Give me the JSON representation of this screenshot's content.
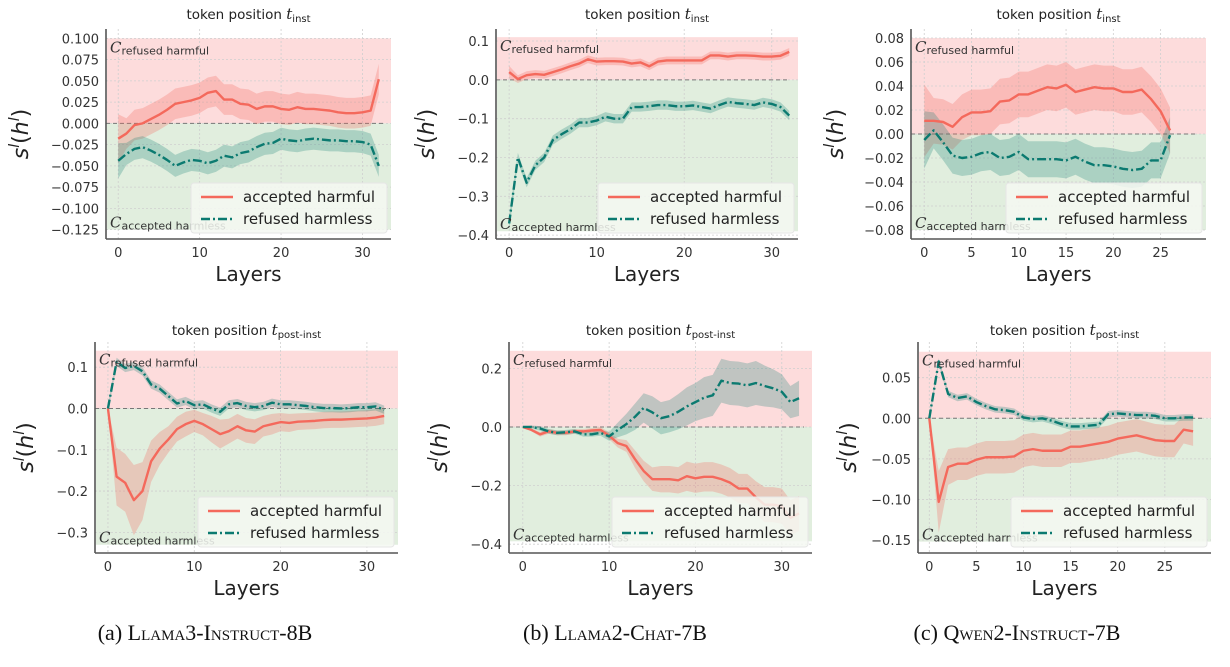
{
  "colors": {
    "accepted": "#f4695c",
    "refused": "#0b7a70",
    "refused_region": "#fddcdc",
    "accepted_region": "#e1eede"
  },
  "captions": [
    {
      "label": "(a)",
      "model": "Llama3-Instruct-8B"
    },
    {
      "label": "(b)",
      "model": "Llama2-Chat-7B"
    },
    {
      "label": "(c)",
      "model": "Qwen2-Instruct-7B"
    }
  ],
  "chart_data": [
    {
      "type": "line",
      "title_prefix": "token position",
      "title_symbol": "t",
      "title_sub": "inst",
      "xlabel": "Layers",
      "ylabel_base": "s",
      "ylabel_sup": "l",
      "ylabel_arg": "h",
      "region_symbol": "C",
      "region_top": "refused harmful",
      "region_bottom": "accepted harmless",
      "xlim": [
        -1.5,
        33.5
      ],
      "ylim": [
        -0.136,
        0.111
      ],
      "region_limits": [
        -0.125,
        0.1
      ],
      "xticks": [
        0,
        10,
        20,
        30
      ],
      "xtick_labels": [
        "0",
        "10",
        "20",
        "30"
      ],
      "yticks": [
        0.1,
        0.075,
        0.05,
        0.025,
        0,
        -0.025,
        -0.05,
        -0.075,
        -0.1,
        -0.125
      ],
      "ytick_labels": [
        "0.100",
        "0.075",
        "0.050",
        "0.025",
        "0.000",
        "−0.025",
        "−0.050",
        "−0.075",
        "−0.100",
        "−0.125"
      ],
      "series": [
        {
          "name": "accepted harmful",
          "std": 0.018,
          "values": [
            -0.018,
            -0.012,
            -0.002,
            0,
            0.005,
            0.01,
            0.016,
            0.023,
            0.025,
            0.027,
            0.03,
            0.036,
            0.038,
            0.028,
            0.028,
            0.023,
            0.022,
            0.017,
            0.02,
            0.02,
            0.017,
            0.016,
            0.019,
            0.017,
            0.017,
            0.016,
            0.015,
            0.013,
            0.012,
            0.012,
            0.013,
            0.015,
            0.052
          ]
        },
        {
          "name": "refused harmless",
          "std": 0.013,
          "values": [
            -0.044,
            -0.036,
            -0.03,
            -0.028,
            -0.032,
            -0.037,
            -0.043,
            -0.05,
            -0.046,
            -0.043,
            -0.044,
            -0.047,
            -0.044,
            -0.038,
            -0.04,
            -0.035,
            -0.033,
            -0.028,
            -0.024,
            -0.023,
            -0.018,
            -0.02,
            -0.021,
            -0.019,
            -0.018,
            -0.019,
            -0.02,
            -0.02,
            -0.021,
            -0.021,
            -0.022,
            -0.025,
            -0.05
          ]
        }
      ]
    },
    {
      "type": "line",
      "title_prefix": "token position",
      "title_symbol": "t",
      "title_sub": "inst",
      "xlabel": "Layers",
      "ylabel_base": "s",
      "ylabel_sup": "l",
      "ylabel_arg": "h",
      "region_symbol": "C",
      "region_top": "refused harmful",
      "region_bottom": "accepted harmless",
      "xlim": [
        -1.5,
        33
      ],
      "ylim": [
        -0.41,
        0.131
      ],
      "region_limits": [
        -0.39,
        0.11
      ],
      "xticks": [
        0,
        10,
        20,
        30
      ],
      "xtick_labels": [
        "0",
        "10",
        "20",
        "30"
      ],
      "yticks": [
        0.1,
        0,
        -0.1,
        -0.2,
        -0.3,
        -0.4
      ],
      "ytick_labels": [
        "0.1",
        "0.0",
        "−0.1",
        "−0.2",
        "−0.3",
        "−0.4"
      ],
      "series": [
        {
          "name": "accepted harmful",
          "std": 0.01,
          "values": [
            0.02,
            0.002,
            0.012,
            0.015,
            0.013,
            0.02,
            0.027,
            0.035,
            0.042,
            0.053,
            0.047,
            0.048,
            0.048,
            0.047,
            0.042,
            0.045,
            0.035,
            0.047,
            0.05,
            0.05,
            0.05,
            0.05,
            0.05,
            0.063,
            0.063,
            0.06,
            0.063,
            0.063,
            0.062,
            0.06,
            0.06,
            0.062,
            0.072
          ]
        },
        {
          "name": "refused harmless",
          "std": 0.012,
          "values": [
            -0.37,
            -0.2,
            -0.265,
            -0.22,
            -0.2,
            -0.155,
            -0.14,
            -0.127,
            -0.11,
            -0.11,
            -0.105,
            -0.095,
            -0.1,
            -0.1,
            -0.07,
            -0.07,
            -0.068,
            -0.065,
            -0.065,
            -0.068,
            -0.068,
            -0.066,
            -0.07,
            -0.074,
            -0.065,
            -0.057,
            -0.06,
            -0.062,
            -0.065,
            -0.058,
            -0.062,
            -0.07,
            -0.092
          ]
        }
      ]
    },
    {
      "type": "line",
      "title_prefix": "token position",
      "title_symbol": "t",
      "title_sub": "inst",
      "xlabel": "Layers",
      "ylabel_base": "s",
      "ylabel_sup": "l",
      "ylabel_arg": "h",
      "region_symbol": "C",
      "region_top": "refused harmful",
      "region_bottom": "accepted harmless",
      "xlim": [
        -1.4,
        29.8
      ],
      "ylim": [
        -0.0875,
        0.0875
      ],
      "region_limits": [
        -0.08,
        0.08
      ],
      "xticks": [
        0,
        5,
        10,
        15,
        20,
        25
      ],
      "xtick_labels": [
        "0",
        "5",
        "10",
        "15",
        "20",
        "25"
      ],
      "yticks": [
        0.08,
        0.06,
        0.04,
        0.02,
        0,
        -0.02,
        -0.04,
        -0.06,
        -0.08
      ],
      "ytick_labels": [
        "0.08",
        "0.06",
        "0.04",
        "0.02",
        "0.00",
        "−0.02",
        "−0.04",
        "−0.06",
        "−0.08"
      ],
      "series": [
        {
          "name": "accepted harmful",
          "std": 0.019,
          "values": [
            0.011,
            0.011,
            0.01,
            0.006,
            0.014,
            0.018,
            0.018,
            0.019,
            0.027,
            0.028,
            0.033,
            0.033,
            0.036,
            0.039,
            0.038,
            0.041,
            0.035,
            0.037,
            0.039,
            0.038,
            0.038,
            0.035,
            0.035,
            0.037,
            0.029,
            0.019,
            0.003
          ]
        },
        {
          "name": "refused harmless",
          "std": 0.015,
          "values": [
            -0.005,
            0.003,
            -0.007,
            -0.018,
            -0.02,
            -0.019,
            -0.016,
            -0.015,
            -0.02,
            -0.019,
            -0.015,
            -0.021,
            -0.021,
            -0.021,
            -0.021,
            -0.022,
            -0.019,
            -0.023,
            -0.026,
            -0.026,
            -0.027,
            -0.029,
            -0.03,
            -0.029,
            -0.022,
            -0.022,
            -0.001
          ]
        }
      ]
    },
    {
      "type": "line",
      "title_prefix": "token position",
      "title_symbol": "t",
      "title_sub": "post-inst",
      "xlabel": "Layers",
      "ylabel_base": "s",
      "ylabel_sup": "l",
      "ylabel_arg": "h",
      "region_symbol": "C",
      "region_top": "refused harmful",
      "region_bottom": "accepted harmless",
      "xlim": [
        -1.5,
        33.6
      ],
      "ylim": [
        -0.35,
        0.161
      ],
      "region_limits": [
        -0.33,
        0.14
      ],
      "xticks": [
        0,
        10,
        20,
        30
      ],
      "xtick_labels": [
        "0",
        "10",
        "20",
        "30"
      ],
      "yticks": [
        0.1,
        0,
        -0.1,
        -0.2,
        -0.3
      ],
      "ytick_labels": [
        "0.1",
        "0.0",
        "−0.1",
        "−0.2",
        "−0.3"
      ],
      "series": [
        {
          "name": "accepted harmful",
          "std": [
            0,
            0.07,
            0.07,
            0.085,
            0.07,
            0.05,
            0.04,
            0.032,
            0.03,
            0.03,
            0.027,
            0.027,
            0.032,
            0.035,
            0.03,
            0.03,
            0.03,
            0.03,
            0.025,
            0.025,
            0.022,
            0.022,
            0.02,
            0.02,
            0.02,
            0.02,
            0.02,
            0.02,
            0.02,
            0.02,
            0.02,
            0.02,
            0.02
          ],
          "values": [
            0,
            -0.165,
            -0.18,
            -0.222,
            -0.2,
            -0.128,
            -0.097,
            -0.075,
            -0.05,
            -0.038,
            -0.03,
            -0.038,
            -0.05,
            -0.062,
            -0.055,
            -0.043,
            -0.053,
            -0.056,
            -0.043,
            -0.038,
            -0.033,
            -0.035,
            -0.032,
            -0.031,
            -0.03,
            -0.028,
            -0.027,
            -0.027,
            -0.026,
            -0.025,
            -0.024,
            -0.022,
            -0.018
          ]
        },
        {
          "name": "refused harmless",
          "std": 0.01,
          "values": [
            0,
            0.113,
            0.098,
            0.103,
            0.09,
            0.058,
            0.048,
            0.03,
            0.012,
            0.018,
            0.008,
            0.01,
            0,
            -0.008,
            0.01,
            0.013,
            0.006,
            0.003,
            0.006,
            0.014,
            0.01,
            0.01,
            0.008,
            0.006,
            0.003,
            0.001,
            0.001,
            0,
            0.001,
            0.003,
            0.003,
            0.005,
            -0.003
          ]
        }
      ]
    },
    {
      "type": "line",
      "title_prefix": "token position",
      "title_symbol": "t",
      "title_sub": "post-inst",
      "xlabel": "Layers",
      "ylabel_base": "s",
      "ylabel_sup": "l",
      "ylabel_arg": "h",
      "region_symbol": "C",
      "region_top": "refused harmful",
      "region_bottom": "accepted harmless",
      "xlim": [
        -1.6,
        33.5
      ],
      "ylim": [
        -0.43,
        0.29
      ],
      "region_limits": [
        -0.39,
        0.26
      ],
      "xticks": [
        0,
        10,
        20,
        30
      ],
      "xtick_labels": [
        "0",
        "10",
        "20",
        "30"
      ],
      "yticks": [
        0.2,
        0,
        -0.2,
        -0.4
      ],
      "ytick_labels": [
        "0.2",
        "0.0",
        "−0.2",
        "−0.4"
      ],
      "series": [
        {
          "name": "accepted harmful",
          "std": [
            0,
            0.005,
            0.008,
            0.008,
            0.008,
            0.008,
            0.008,
            0.008,
            0.008,
            0.01,
            0.012,
            0.015,
            0.02,
            0.03,
            0.035,
            0.04,
            0.045,
            0.045,
            0.045,
            0.05,
            0.05,
            0.05,
            0.05,
            0.05,
            0.05,
            0.05,
            0.05,
            0.055,
            0.06,
            0.06,
            0.06,
            0.06,
            0.06
          ],
          "values": [
            0,
            -0.01,
            -0.025,
            -0.015,
            -0.02,
            -0.02,
            -0.015,
            -0.015,
            -0.012,
            -0.01,
            -0.03,
            -0.055,
            -0.065,
            -0.11,
            -0.15,
            -0.178,
            -0.178,
            -0.178,
            -0.182,
            -0.168,
            -0.175,
            -0.17,
            -0.17,
            -0.178,
            -0.19,
            -0.21,
            -0.21,
            -0.24,
            -0.265,
            -0.265,
            -0.27,
            -0.31,
            -0.295
          ]
        },
        {
          "name": "refused harmless",
          "std": [
            0,
            0.005,
            0.008,
            0.008,
            0.008,
            0.008,
            0.008,
            0.008,
            0.008,
            0.01,
            0.015,
            0.025,
            0.035,
            0.045,
            0.05,
            0.055,
            0.055,
            0.055,
            0.06,
            0.065,
            0.065,
            0.07,
            0.07,
            0.075,
            0.075,
            0.075,
            0.075,
            0.075,
            0.07,
            0.065,
            0.06,
            0.055,
            0.06
          ],
          "values": [
            0,
            0,
            -0.005,
            -0.015,
            -0.02,
            -0.018,
            -0.015,
            -0.025,
            -0.025,
            -0.02,
            -0.032,
            -0.01,
            0.01,
            0.035,
            0.065,
            0.05,
            0.03,
            0.037,
            0.052,
            0.07,
            0.085,
            0.1,
            0.108,
            0.158,
            0.15,
            0.148,
            0.142,
            0.15,
            0.14,
            0.132,
            0.12,
            0.085,
            0.098
          ]
        }
      ]
    },
    {
      "type": "line",
      "title_prefix": "token position",
      "title_symbol": "t",
      "title_sub": "post-inst",
      "xlabel": "Layers",
      "ylabel_base": "s",
      "ylabel_sup": "l",
      "ylabel_arg": "h",
      "region_symbol": "C",
      "region_top": "refused harmful",
      "region_bottom": "accepted harmless",
      "xlim": [
        -1.2,
        29.9
      ],
      "ylim": [
        -0.166,
        0.094
      ],
      "region_limits": [
        -0.152,
        0.082
      ],
      "xticks": [
        0,
        5,
        10,
        15,
        20,
        25
      ],
      "xtick_labels": [
        "0",
        "5",
        "10",
        "15",
        "20",
        "25"
      ],
      "yticks": [
        0.05,
        0,
        -0.05,
        -0.1,
        -0.15
      ],
      "ytick_labels": [
        "0.05",
        "0.00",
        "−0.05",
        "−0.10",
        "−0.15"
      ],
      "series": [
        {
          "name": "accepted harmful",
          "std": [
            0,
            0.038,
            0.022,
            0.02,
            0.02,
            0.02,
            0.02,
            0.02,
            0.02,
            0.02,
            0.02,
            0.02,
            0.02,
            0.02,
            0.02,
            0.02,
            0.02,
            0.02,
            0.02,
            0.02,
            0.02,
            0.02,
            0.02,
            0.02,
            0.02,
            0.02,
            0.02,
            0.017,
            0.018
          ],
          "values": [
            0,
            -0.103,
            -0.06,
            -0.056,
            -0.056,
            -0.051,
            -0.048,
            -0.048,
            -0.048,
            -0.047,
            -0.04,
            -0.038,
            -0.04,
            -0.04,
            -0.04,
            -0.035,
            -0.035,
            -0.033,
            -0.031,
            -0.029,
            -0.025,
            -0.023,
            -0.021,
            -0.024,
            -0.027,
            -0.028,
            -0.028,
            -0.014,
            -0.016
          ]
        },
        {
          "name": "refused harmless",
          "std": 0.004,
          "values": [
            0,
            0.07,
            0.03,
            0.025,
            0.027,
            0.02,
            0.015,
            0.011,
            0.01,
            0.008,
            0.001,
            -0.001,
            0,
            -0.003,
            -0.007,
            -0.01,
            -0.01,
            -0.009,
            -0.008,
            0.005,
            0.006,
            0.005,
            0.004,
            0.004,
            0.003,
            0,
            0,
            0.001,
            0.001
          ]
        }
      ]
    }
  ]
}
